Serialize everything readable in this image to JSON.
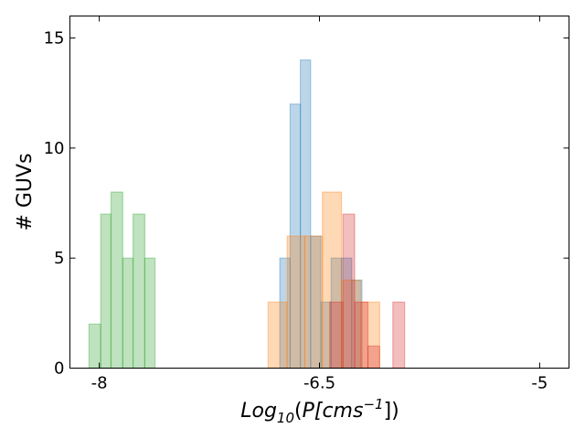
{
  "chart_data": {
    "type": "bar",
    "subtype": "overlapping-histogram",
    "xlabel_base": "Log",
    "xlabel_sub": "10",
    "xlabel_open": "(",
    "xlabel_italic": "P[cms",
    "xlabel_sup": "−1",
    "xlabel_close": "])",
    "ylabel": "# GUVs",
    "xlim": [
      -8.2,
      -4.8
    ],
    "ylim": [
      0,
      16
    ],
    "x_ticks": [
      {
        "value": -8.0,
        "label": "-8"
      },
      {
        "value": -6.5,
        "label": "-6.5"
      },
      {
        "value": -5.0,
        "label": "-5"
      }
    ],
    "y_ticks": [
      {
        "value": 0,
        "label": "0"
      },
      {
        "value": 5,
        "label": "5"
      },
      {
        "value": 10,
        "label": "10"
      },
      {
        "value": 15,
        "label": "15"
      }
    ],
    "series": [
      {
        "color": "#2ca02c",
        "bins": [
          {
            "x0": -8.07,
            "x1": -7.99,
            "count": 2
          },
          {
            "x0": -7.99,
            "x1": -7.92,
            "count": 7
          },
          {
            "x0": -7.92,
            "x1": -7.84,
            "count": 8
          },
          {
            "x0": -7.84,
            "x1": -7.77,
            "count": 5
          },
          {
            "x0": -7.77,
            "x1": -7.69,
            "count": 7
          },
          {
            "x0": -7.69,
            "x1": -7.62,
            "count": 5
          }
        ]
      },
      {
        "color": "#1f77b4",
        "bins": [
          {
            "x0": -6.77,
            "x1": -6.7,
            "count": 5
          },
          {
            "x0": -6.7,
            "x1": -6.63,
            "count": 12
          },
          {
            "x0": -6.63,
            "x1": -6.56,
            "count": 14
          },
          {
            "x0": -6.56,
            "x1": -6.49,
            "count": 6
          },
          {
            "x0": -6.49,
            "x1": -6.42,
            "count": 3
          },
          {
            "x0": -6.42,
            "x1": -6.35,
            "count": 5
          },
          {
            "x0": -6.35,
            "x1": -6.28,
            "count": 5
          },
          {
            "x0": -6.28,
            "x1": -6.21,
            "count": 4
          }
        ]
      },
      {
        "color": "#ff7f0e",
        "bins": [
          {
            "x0": -6.85,
            "x1": -6.72,
            "count": 3
          },
          {
            "x0": -6.72,
            "x1": -6.6,
            "count": 6
          },
          {
            "x0": -6.6,
            "x1": -6.48,
            "count": 6
          },
          {
            "x0": -6.48,
            "x1": -6.35,
            "count": 8
          },
          {
            "x0": -6.35,
            "x1": -6.22,
            "count": 4
          },
          {
            "x0": -6.22,
            "x1": -6.09,
            "count": 3
          }
        ]
      },
      {
        "color": "#d62728",
        "bins": [
          {
            "x0": -6.43,
            "x1": -6.34,
            "count": 3
          },
          {
            "x0": -6.34,
            "x1": -6.26,
            "count": 7
          },
          {
            "x0": -6.26,
            "x1": -6.17,
            "count": 3
          },
          {
            "x0": -6.17,
            "x1": -6.09,
            "count": 1
          },
          {
            "x0": -6.09,
            "x1": -6.0,
            "count": 0
          },
          {
            "x0": -6.0,
            "x1": -5.92,
            "count": 3
          }
        ]
      }
    ]
  }
}
